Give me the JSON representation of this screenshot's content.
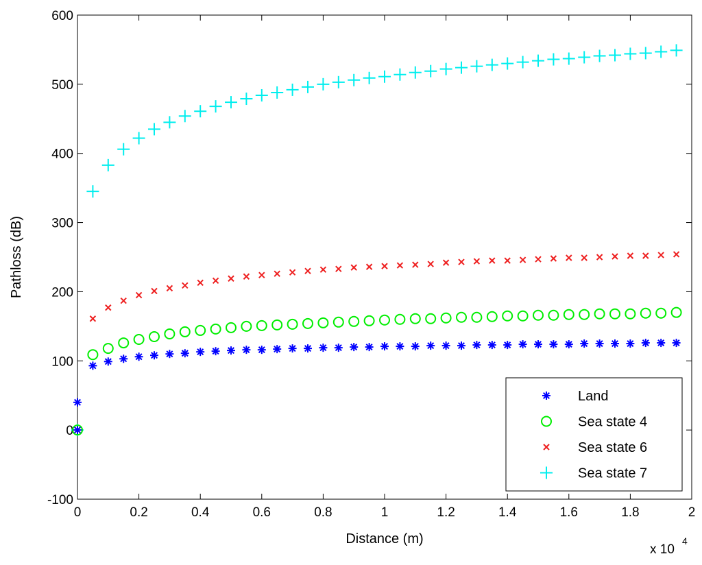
{
  "chart_data": {
    "type": "scatter",
    "title": "",
    "xlabel": "Distance (m)",
    "ylabel": "Pathloss (dB)",
    "x_multiplier_label": "x 10",
    "x_multiplier_exponent": "4",
    "xlim": [
      0,
      2
    ],
    "ylim": [
      -100,
      600
    ],
    "x_ticks": [
      0,
      0.2,
      0.4,
      0.6,
      0.8,
      1,
      1.2,
      1.4,
      1.6,
      1.8,
      2
    ],
    "x_tick_labels": [
      "0",
      "0.2",
      "0.4",
      "0.6",
      "0.8",
      "1",
      "1.2",
      "1.4",
      "1.6",
      "1.8",
      "2"
    ],
    "y_ticks": [
      -100,
      0,
      100,
      200,
      300,
      400,
      500,
      600
    ],
    "y_tick_labels": [
      "-100",
      "0",
      "100",
      "200",
      "300",
      "400",
      "500",
      "600"
    ],
    "grid": false,
    "legend_position": "bottom-right",
    "x": [
      0,
      0.05,
      0.1,
      0.15,
      0.2,
      0.25,
      0.3,
      0.35,
      0.4,
      0.45,
      0.5,
      0.55,
      0.6,
      0.65,
      0.7,
      0.75,
      0.8,
      0.85,
      0.9,
      0.95,
      1,
      1.05,
      1.1,
      1.15,
      1.2,
      1.25,
      1.3,
      1.35,
      1.4,
      1.45,
      1.5,
      1.55,
      1.6,
      1.65,
      1.7,
      1.75,
      1.8,
      1.85,
      1.9,
      1.95
    ],
    "series": [
      {
        "name": "Land",
        "marker": "asterisk",
        "color": "#0000ff",
        "values": [
          40,
          93,
          99,
          103,
          106,
          108,
          110,
          111,
          113,
          114,
          115,
          116,
          116,
          117,
          118,
          118,
          119,
          119,
          120,
          120,
          121,
          121,
          121,
          122,
          122,
          122,
          123,
          123,
          123,
          124,
          124,
          124,
          124,
          125,
          125,
          125,
          125,
          126,
          126,
          126
        ],
        "extra_points": [
          [
            0,
            0
          ]
        ]
      },
      {
        "name": "Sea state 4",
        "marker": "circle",
        "color": "#00ee00",
        "values": [
          0,
          109,
          118,
          126,
          131,
          135,
          139,
          142,
          144,
          146,
          148,
          150,
          151,
          152,
          153,
          154,
          155,
          156,
          157,
          158,
          159,
          160,
          161,
          161,
          162,
          163,
          163,
          164,
          165,
          165,
          166,
          166,
          167,
          167,
          168,
          168,
          168,
          169,
          169,
          170
        ]
      },
      {
        "name": "Sea state 6",
        "marker": "x",
        "color": "#ee2020",
        "values": [
          0,
          161,
          177,
          187,
          195,
          201,
          205,
          209,
          213,
          216,
          219,
          222,
          224,
          226,
          228,
          230,
          232,
          233,
          235,
          236,
          237,
          238,
          239,
          240,
          242,
          243,
          244,
          245,
          245,
          246,
          247,
          248,
          249,
          249,
          250,
          251,
          252,
          252,
          253,
          254
        ]
      },
      {
        "name": "Sea state 7",
        "marker": "plus",
        "color": "#00eeee",
        "values": [
          0,
          345,
          383,
          406,
          422,
          435,
          445,
          454,
          461,
          468,
          474,
          479,
          484,
          488,
          492,
          496,
          500,
          503,
          506,
          509,
          511,
          514,
          517,
          519,
          522,
          524,
          526,
          528,
          530,
          532,
          534,
          536,
          537,
          539,
          541,
          542,
          544,
          545,
          547,
          549
        ]
      }
    ]
  }
}
